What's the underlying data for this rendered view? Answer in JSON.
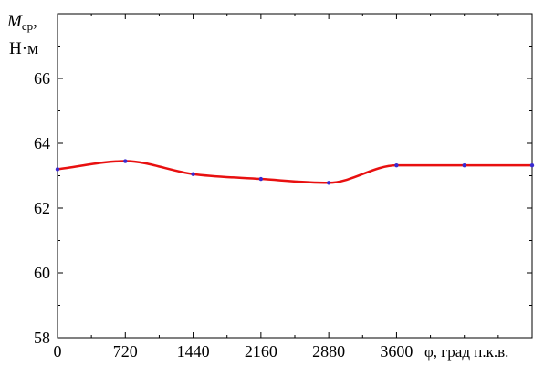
{
  "chart_data": {
    "type": "line",
    "title": "",
    "ylabel": {
      "symbol": "M",
      "subscript": "ср",
      "suffix": ",",
      "unit": "Н·м"
    },
    "xlabel": "φ, град п.к.в.",
    "xlim": [
      0,
      5040
    ],
    "ylim": [
      58,
      68
    ],
    "xticks": [
      0,
      720,
      1440,
      2160,
      2880,
      3600
    ],
    "xtick_labels": [
      "0",
      "720",
      "1440",
      "2160",
      "2880",
      "3600"
    ],
    "xtick_minor": [
      360,
      1080,
      1800,
      2520,
      3240,
      3960,
      4320,
      4680
    ],
    "yticks": [
      58,
      60,
      62,
      64,
      66
    ],
    "ytick_labels": [
      "58",
      "60",
      "62",
      "64",
      "66"
    ],
    "ytick_minor": [
      59,
      61,
      63,
      65,
      67
    ],
    "grid": false,
    "legend": "none",
    "series": [
      {
        "color": "#e81010",
        "marker_color": "#3a2ad0",
        "x": [
          0,
          720,
          1440,
          2160,
          2880,
          3600,
          4320,
          5040
        ],
        "y": [
          63.2,
          63.45,
          63.05,
          62.9,
          62.78,
          63.32,
          63.32,
          63.32
        ]
      }
    ]
  }
}
